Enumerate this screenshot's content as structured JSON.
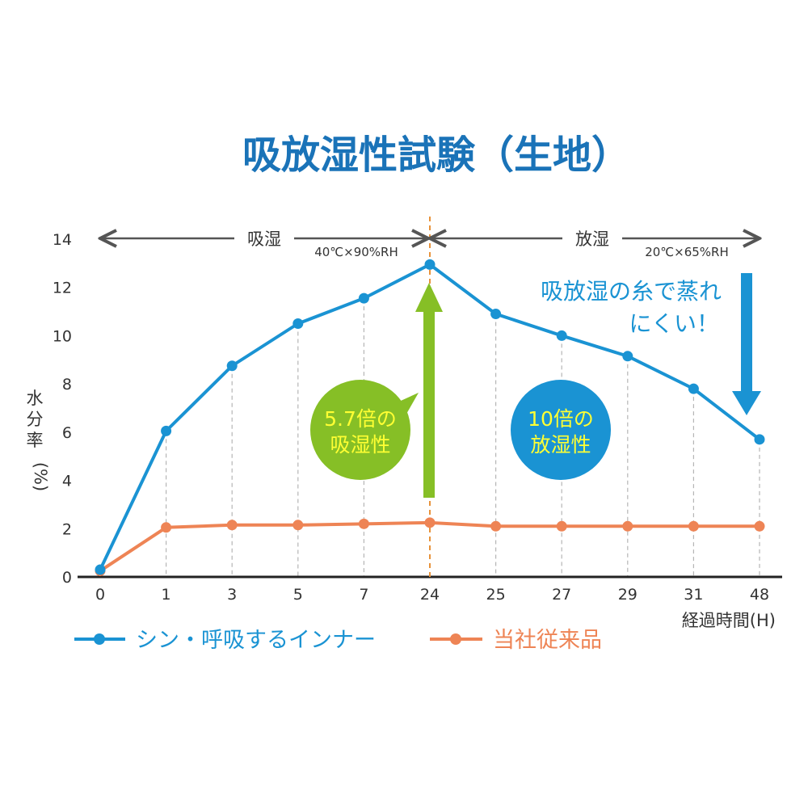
{
  "chart_data": {
    "type": "line",
    "title": "吸放湿性試験（生地）",
    "xlabel": "経過時間(H)",
    "ylabel": [
      "水",
      "分",
      "率",
      "(%)"
    ],
    "categories": [
      "0",
      "1",
      "3",
      "5",
      "7",
      "24",
      "25",
      "27",
      "29",
      "31",
      "48"
    ],
    "ylim": [
      0,
      14
    ],
    "yticks": [
      0,
      2,
      4,
      6,
      8,
      10,
      12,
      14
    ],
    "grid": "vertical dashed",
    "legend_position": "bottom",
    "series": [
      {
        "name": "シン・呼吸するインナー",
        "color": "#1a93d3",
        "values": [
          0.3,
          6.05,
          8.75,
          10.5,
          11.55,
          12.95,
          10.9,
          10.0,
          9.15,
          7.8,
          5.7
        ]
      },
      {
        "name": "当社従来品",
        "color": "#ee8455",
        "values": [
          0.25,
          2.05,
          2.15,
          2.15,
          2.2,
          2.25,
          2.1,
          2.1,
          2.1,
          2.1,
          2.1
        ]
      }
    ],
    "phases": [
      {
        "label": "吸湿",
        "condition": "40℃×90%RH"
      },
      {
        "label": "放湿",
        "condition": "20℃×65%RH"
      }
    ],
    "annotations": {
      "absorb_badge": [
        "5.7倍の",
        "吸湿性"
      ],
      "release_badge": [
        "10倍の",
        "放湿性"
      ],
      "callout": [
        "吸放湿の糸で蒸れ",
        "にくい！"
      ]
    },
    "colors": {
      "accent_blue": "#1a93d3",
      "orange": "#ee8455",
      "green": "#86bf26",
      "badge_text": "#ffff33",
      "title_blue": "#1a73b8",
      "divider_orange": "#e8923a"
    }
  }
}
